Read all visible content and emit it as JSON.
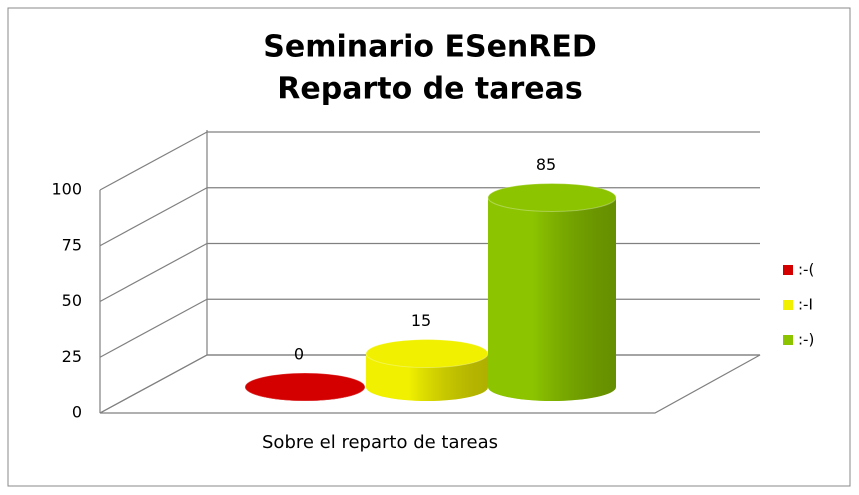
{
  "chart_data": {
    "type": "bar3d",
    "title": [
      "Seminario ESenRED",
      "Reparto de tareas"
    ],
    "categories": [
      "Sobre el reparto de tareas"
    ],
    "series": [
      {
        "name": ":-(",
        "color": "#d40000",
        "values": [
          0
        ]
      },
      {
        "name": ":-I",
        "color": "#f0f000",
        "values": [
          15
        ]
      },
      {
        "name": ":-)",
        "color": "#8cc400",
        "values": [
          85
        ]
      }
    ],
    "ylim": [
      0,
      100
    ],
    "yticks": [
      0,
      25,
      50,
      75,
      100
    ],
    "grid": true,
    "legend": "right"
  }
}
